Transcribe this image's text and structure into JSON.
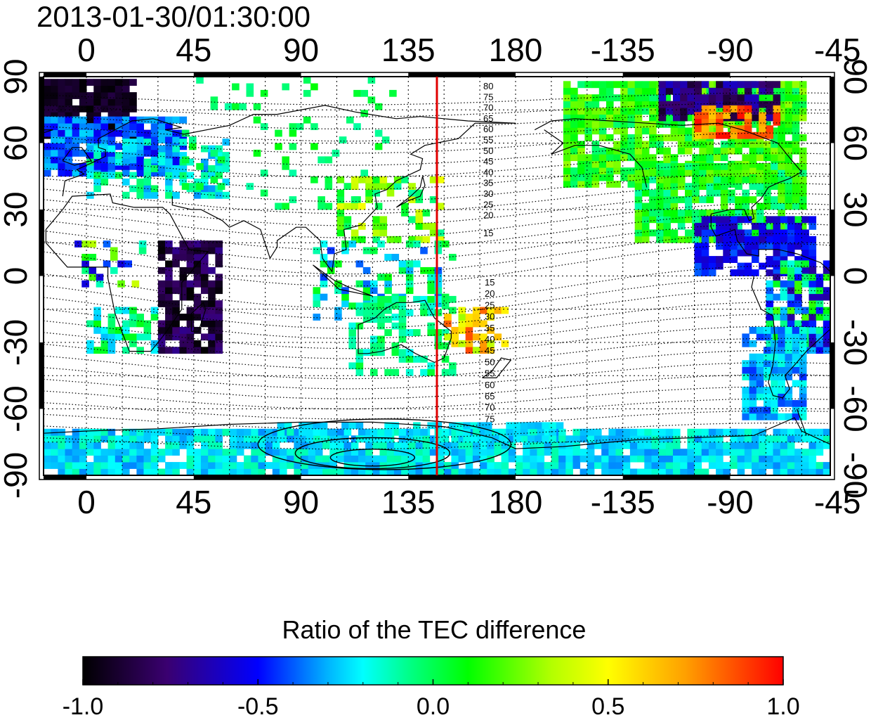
{
  "map": {
    "title": "2013-01-30/01:30:00",
    "lon_ticks_top": [
      "0",
      "45",
      "90",
      "135",
      "180",
      "-135",
      "-90",
      "-45"
    ],
    "lon_ticks_bottom": [
      "0",
      "45",
      "90",
      "135",
      "180",
      "-135",
      "-90",
      "-45"
    ],
    "lat_ticks_left": [
      "90",
      "60",
      "30",
      "0",
      "-30",
      "-60",
      "-90"
    ],
    "lat_ticks_right": [
      "90",
      "60",
      "30",
      "0",
      "-30",
      "-60",
      "-90"
    ],
    "lon_range": [
      -18,
      312
    ],
    "lat_range": [
      -90,
      90
    ],
    "marker_longitude": 147,
    "marker_color": "#e00000",
    "contour_labels_north": [
      "80",
      "75",
      "70",
      "65",
      "60",
      "55",
      "50",
      "45",
      "40",
      "35",
      "30",
      "25",
      "20",
      "15"
    ],
    "contour_labels_south": [
      "15",
      "20",
      "25",
      "30",
      "35",
      "40",
      "45",
      "50",
      "55",
      "60",
      "65",
      "70",
      "75"
    ]
  },
  "colorbar": {
    "title": "Ratio of the TEC difference",
    "ticks": [
      "-1.0",
      "-0.5",
      "0.0",
      "0.5",
      "1.0"
    ],
    "range": [
      -1.0,
      1.0
    ],
    "colors": [
      "#000000",
      "#3a0070",
      "#0000ff",
      "#00b4ff",
      "#00ffff",
      "#00ff80",
      "#00ff00",
      "#b4ff00",
      "#ffff00",
      "#ffa000",
      "#ff0000"
    ]
  }
}
